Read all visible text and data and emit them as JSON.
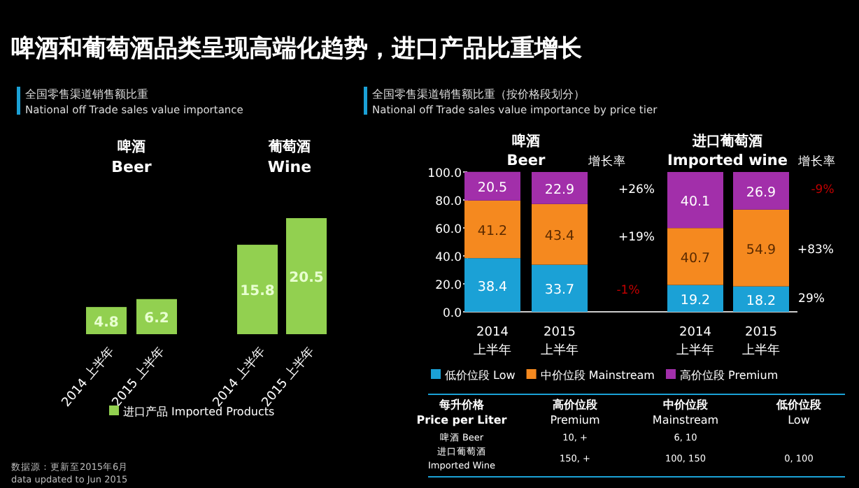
{
  "chart_data": [
    {
      "type": "bar",
      "title": "啤酒和葡萄酒品类呈现高端化趋势，进口产品比重增长",
      "subtitle": "全国零售渠道销售额比重\nNational off Trade sales value importance",
      "categories": [
        "2014 上半年",
        "2015 上半年",
        "2014 上半年",
        "2015 上半年"
      ],
      "series": [
        {
          "name": "进口产品 Imported Products",
          "color": "#92d050",
          "values": [
            4.8,
            6.2,
            15.8,
            20.5
          ]
        }
      ],
      "data_labels": true,
      "legend": "bottom",
      "annotations": [
        "啤酒",
        "Beer",
        "葡萄酒",
        "Wine",
        "数据源：更新至2015年6月",
        "data updated to Jun 2015"
      ]
    },
    {
      "type": "bar",
      "stacked": true,
      "subtitle": "全国零售渠道销售额比重（按价格段划分）\nNational off Trade sales value importance by price tier",
      "categories": [
        "2014 上半年",
        "2015 上半年",
        "2014 上半年",
        "2015 上半年"
      ],
      "series": [
        {
          "name": "低价位段 Low",
          "color": "#1ba1d6",
          "values": [
            38.4,
            33.7,
            19.2,
            18.2
          ]
        },
        {
          "name": "中价位段 Mainstream",
          "color": "#f5891f",
          "values": [
            41.2,
            43.4,
            40.7,
            54.9
          ]
        },
        {
          "name": "高价位段 Premium",
          "color": "#a22faa",
          "values": [
            20.5,
            22.9,
            40.1,
            26.9
          ]
        }
      ],
      "ylim": [
        0,
        100
      ],
      "yticks": [
        {
          "value": 0,
          "label": "0.0"
        },
        {
          "value": 20,
          "label": "20.0"
        },
        {
          "value": 40,
          "label": "40.0"
        },
        {
          "value": 60,
          "label": "60.0"
        },
        {
          "value": 80,
          "label": "80.0"
        },
        {
          "value": 100,
          "label": "100.0"
        }
      ],
      "data_labels": true,
      "legend": "bottom",
      "grid": false,
      "annotations": [
        "啤酒",
        "Beer",
        "进口葡萄酒",
        "Imported wine",
        "增长率",
        "+26%",
        "+19%",
        "-1%",
        "增长率",
        "-9%",
        "+83%",
        "29%",
        "每升价格",
        "Price per Liter",
        "高价位段",
        "Premium",
        "中价位段",
        "Mainstream",
        "低价位段",
        "Low",
        "啤酒 Beer",
        "10, +",
        "6, 10",
        "进口葡萄酒",
        "Imported Wine",
        "150, +",
        "100, 150",
        "0, 100"
      ]
    }
  ]
}
